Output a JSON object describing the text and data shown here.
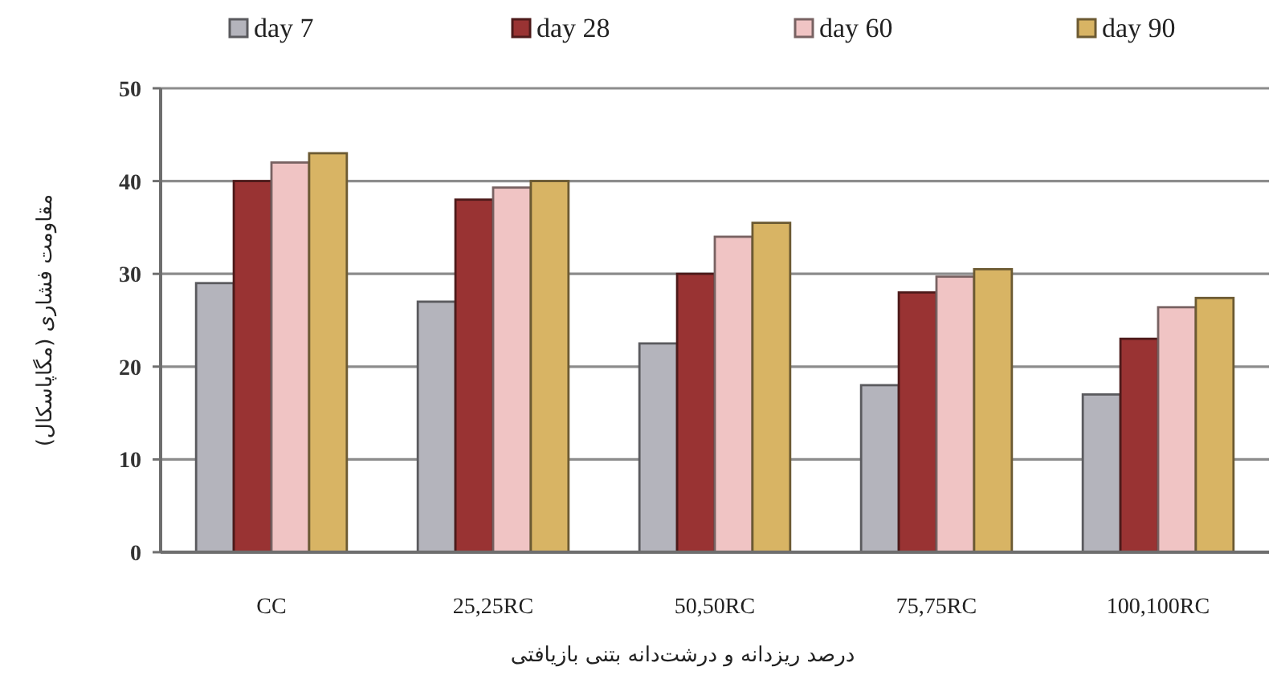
{
  "chart_data": {
    "type": "bar",
    "categories": [
      "CC",
      "25,25RC",
      "50,50RC",
      "75,75RC",
      "100,100RC"
    ],
    "series": [
      {
        "name": "day 7",
        "color": "#b4b4bc",
        "values": [
          29,
          27,
          22.5,
          18,
          17
        ]
      },
      {
        "name": "day 28",
        "color": "#993333",
        "values": [
          40,
          38,
          30,
          28,
          23
        ]
      },
      {
        "name": "day 60",
        "color": "#f0c4c4",
        "values": [
          42,
          39.3,
          34,
          29.7,
          26.4
        ]
      },
      {
        "name": "day 90",
        "color": "#d8b464",
        "values": [
          43,
          40,
          35.5,
          30.5,
          27.4
        ]
      }
    ],
    "xlabel": "درصد ریزدانه و درشت‌دانه بتنی بازیافتی",
    "ylabel": "مقاومت فشاری (مگاپاسکال)",
    "ylim": [
      0,
      50
    ],
    "yticks": [
      0,
      10,
      20,
      30,
      40,
      50
    ],
    "grid": "y",
    "legend": "top"
  }
}
